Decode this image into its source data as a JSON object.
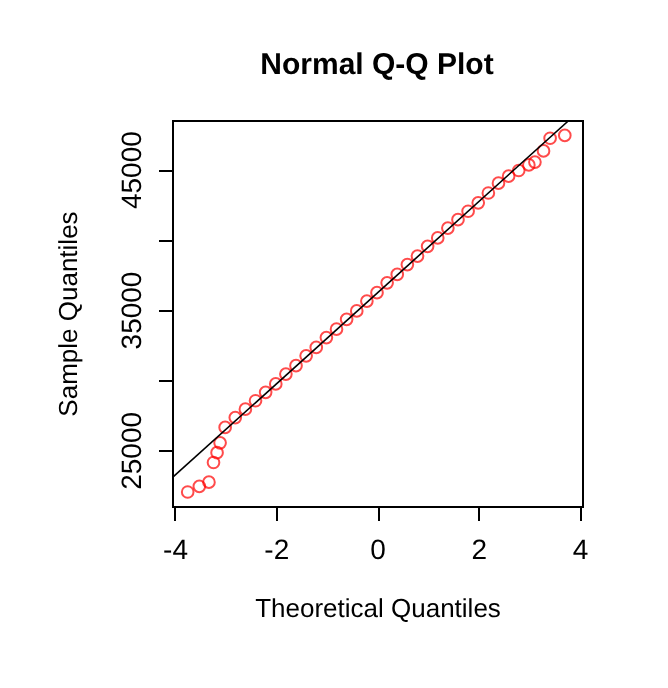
{
  "chart_data": {
    "type": "scatter",
    "title": "Normal Q-Q Plot",
    "xlabel": "Theoretical Quantiles",
    "ylabel": "Sample Quantiles",
    "xlim": [
      -4.05,
      4.05
    ],
    "ylim": [
      21000,
      48500
    ],
    "xticks": [
      -4,
      -2,
      0,
      2,
      4
    ],
    "yticks": [
      25000,
      {
        "value": 30000,
        "label": null
      },
      35000,
      {
        "value": 40000,
        "label": null
      },
      45000
    ],
    "grid": false,
    "marker": "circle",
    "series": [
      {
        "color": "#ff0000",
        "x": [
          -3.74,
          -3.51,
          -3.32,
          -3.23,
          -3.16,
          -3.1,
          -3.0,
          -2.8,
          -2.6,
          -2.4,
          -2.2,
          -2.0,
          -1.8,
          -1.6,
          -1.4,
          -1.2,
          -1.0,
          -0.8,
          -0.6,
          -0.4,
          -0.2,
          0,
          0.2,
          0.4,
          0.6,
          0.8,
          1.0,
          1.2,
          1.4,
          1.6,
          1.8,
          2.0,
          2.2,
          2.4,
          2.6,
          2.8,
          3.0,
          3.12,
          3.29,
          3.42,
          3.71
        ],
        "values": [
          22000,
          22400,
          22700,
          24100,
          24800,
          25500,
          26600,
          27300,
          27900,
          28500,
          29100,
          29700,
          30400,
          31000,
          31700,
          32300,
          33000,
          33600,
          34300,
          34900,
          35600,
          36200,
          36900,
          37500,
          38200,
          38800,
          39500,
          40100,
          40800,
          41400,
          42000,
          42600,
          43300,
          44000,
          44500,
          44900,
          45300,
          45500,
          46300,
          47200,
          47400
        ]
      },
      {
        "type": "line",
        "marker": "none",
        "color": "#000000",
        "x": [
          -4.05,
          3.8
        ],
        "values": [
          23000,
          48500
        ]
      }
    ]
  }
}
